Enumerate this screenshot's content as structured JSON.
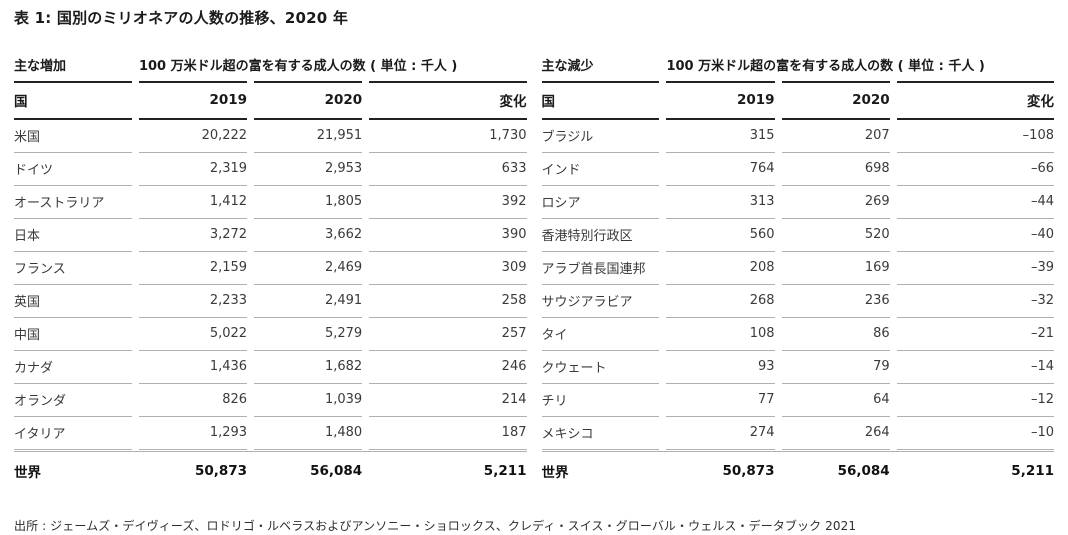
{
  "title": "表 1: 国別のミリオネアの人数の推移、2020 年",
  "source": "出所 : ジェームズ・デイヴィーズ、ロドリゴ・ルベラスおよびアンソニー・ショロックス、クレディ・スイス・グローバル・ウェルス・データブック 2021",
  "colors": {
    "header_rule": "#222222",
    "row_rule": "#b0b0b0",
    "heading_text": "#1a1a1a",
    "data_text": "#3a3a3a",
    "background": "#ffffff"
  },
  "tables": [
    {
      "group_label": "主な増加",
      "group_header": "100 万米ドル超の富を有する成人の数 ( 単位 : 千人 )",
      "columns": [
        "国",
        "2019",
        "2020",
        "変化"
      ],
      "rows": [
        [
          "米国",
          "20,222",
          "21,951",
          "1,730"
        ],
        [
          "ドイツ",
          "2,319",
          "2,953",
          "633"
        ],
        [
          "オーストラリア",
          "1,412",
          "1,805",
          "392"
        ],
        [
          "日本",
          "3,272",
          "3,662",
          "390"
        ],
        [
          "フランス",
          "2,159",
          "2,469",
          "309"
        ],
        [
          "英国",
          "2,233",
          "2,491",
          "258"
        ],
        [
          "中国",
          "5,022",
          "5,279",
          "257"
        ],
        [
          "カナダ",
          "1,436",
          "1,682",
          "246"
        ],
        [
          "オランダ",
          "826",
          "1,039",
          "214"
        ],
        [
          "イタリア",
          "1,293",
          "1,480",
          "187"
        ]
      ],
      "total": [
        "世界",
        "50,873",
        "56,084",
        "5,211"
      ]
    },
    {
      "group_label": "主な減少",
      "group_header": "100 万米ドル超の富を有する成人の数 ( 単位 : 千人 )",
      "columns": [
        "国",
        "2019",
        "2020",
        "変化"
      ],
      "rows": [
        [
          "ブラジル",
          "315",
          "207",
          "–108"
        ],
        [
          "インド",
          "764",
          "698",
          "–66"
        ],
        [
          "ロシア",
          "313",
          "269",
          "–44"
        ],
        [
          "香港特別行政区",
          "560",
          "520",
          "–40"
        ],
        [
          "アラブ首長国連邦",
          "208",
          "169",
          "–39"
        ],
        [
          "サウジアラビア",
          "268",
          "236",
          "–32"
        ],
        [
          "タイ",
          "108",
          "86",
          "–21"
        ],
        [
          "クウェート",
          "93",
          "79",
          "–14"
        ],
        [
          "チリ",
          "77",
          "64",
          "–12"
        ],
        [
          "メキシコ",
          "274",
          "264",
          "–10"
        ]
      ],
      "total": [
        "世界",
        "50,873",
        "56,084",
        "5,211"
      ]
    }
  ]
}
